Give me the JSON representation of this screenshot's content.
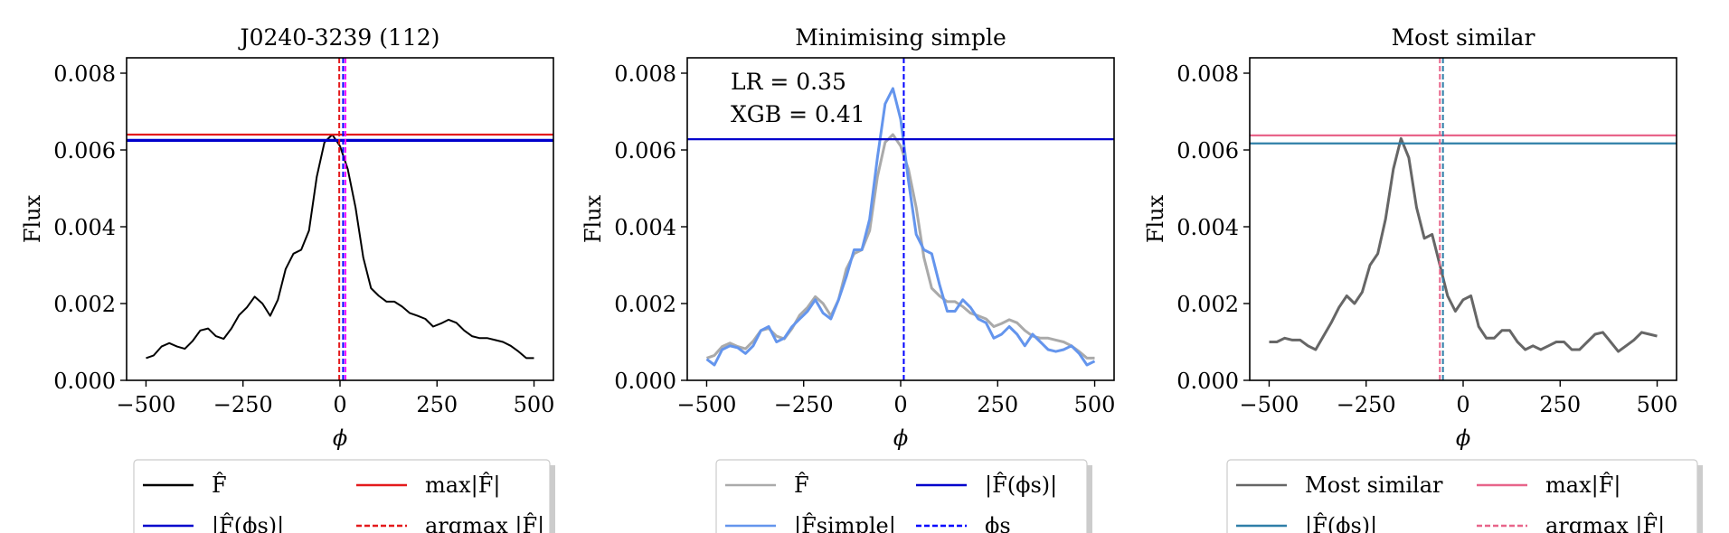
{
  "chart_data": [
    {
      "type": "line",
      "title": "J0240-3239 (112)",
      "xlabel": "ϕ",
      "ylabel": "Flux",
      "xlim": [
        -550,
        550
      ],
      "ylim": [
        0,
        0.0084
      ],
      "xticks": [
        -500,
        -250,
        0,
        250,
        500
      ],
      "xtick_labels": [
        "−500",
        "−250",
        "0",
        "250",
        "500"
      ],
      "yticks": [
        0,
        0.002,
        0.004,
        0.006,
        0.008
      ],
      "ytick_labels": [
        "0.000",
        "0.002",
        "0.004",
        "0.006",
        "0.008"
      ],
      "series": [
        {
          "name": "F̂",
          "style": "solid",
          "color": "#000000",
          "x": [
            -500,
            -480,
            -460,
            -440,
            -420,
            -400,
            -380,
            -360,
            -340,
            -320,
            -300,
            -280,
            -260,
            -240,
            -220,
            -200,
            -180,
            -160,
            -140,
            -120,
            -100,
            -80,
            -60,
            -40,
            -20,
            0,
            20,
            40,
            60,
            80,
            100,
            120,
            140,
            160,
            180,
            200,
            220,
            240,
            260,
            280,
            300,
            320,
            340,
            360,
            380,
            400,
            420,
            440,
            460,
            480,
            500
          ],
          "y": [
            0.00058,
            0.00065,
            0.00088,
            0.00097,
            0.00088,
            0.00082,
            0.00102,
            0.0013,
            0.00135,
            0.00115,
            0.00108,
            0.00135,
            0.0017,
            0.0019,
            0.00218,
            0.002,
            0.00168,
            0.0021,
            0.0029,
            0.0033,
            0.0034,
            0.0039,
            0.0053,
            0.0062,
            0.0064,
            0.0061,
            0.0055,
            0.0045,
            0.0032,
            0.0024,
            0.0022,
            0.00205,
            0.00205,
            0.00192,
            0.00175,
            0.00168,
            0.0016,
            0.0014,
            0.00148,
            0.00158,
            0.0015,
            0.0013,
            0.00115,
            0.0011,
            0.0011,
            0.00105,
            0.001,
            0.0009,
            0.00075,
            0.00058,
            0.00058
          ]
        }
      ],
      "hlines": [
        {
          "name": "max|F̂|",
          "y": 0.0064,
          "color": "#e41a1c",
          "style": "solid"
        },
        {
          "name": "|F̂(ϕs)|",
          "y": 0.00625,
          "color": "#0000cc",
          "style": "solid"
        }
      ],
      "vlines": [
        {
          "name": "argmax |F̂|",
          "x": -2,
          "color": "#e41a1c",
          "style": "dashed"
        },
        {
          "name": "ϕs",
          "x": 8,
          "color": "#0000ff",
          "style": "dashed"
        },
        {
          "name": "magenta marker",
          "x": 14,
          "color": "#ff00ff",
          "style": "dashed"
        }
      ],
      "legend": {
        "position": "bottom",
        "entries": [
          {
            "label": "F̂",
            "color": "#000000",
            "style": "solid",
            "col": 0,
            "row": 0
          },
          {
            "label": "max|F̂|",
            "color": "#e41a1c",
            "style": "solid",
            "col": 1,
            "row": 0
          },
          {
            "label": "|F̂(ϕs)|",
            "color": "#0000cc",
            "style": "solid",
            "col": 0,
            "row": 1
          },
          {
            "label": "argmax |F̂|",
            "color": "#e41a1c",
            "style": "dashed",
            "col": 1,
            "row": 1
          }
        ]
      }
    },
    {
      "type": "line",
      "title": "Minimising simple",
      "xlabel": "ϕ",
      "ylabel": "Flux",
      "xlim": [
        -550,
        550
      ],
      "ylim": [
        0,
        0.0084
      ],
      "xticks": [
        -500,
        -250,
        0,
        250,
        500
      ],
      "xtick_labels": [
        "−500",
        "−250",
        "0",
        "250",
        "500"
      ],
      "yticks": [
        0,
        0.002,
        0.004,
        0.006,
        0.008
      ],
      "ytick_labels": [
        "0.000",
        "0.002",
        "0.004",
        "0.006",
        "0.008"
      ],
      "annotations": [
        "LR = 0.35",
        "XGB = 0.41"
      ],
      "series": [
        {
          "name": "F̂",
          "style": "solid",
          "color": "#aaaaaa",
          "x": [
            -500,
            -480,
            -460,
            -440,
            -420,
            -400,
            -380,
            -360,
            -340,
            -320,
            -300,
            -280,
            -260,
            -240,
            -220,
            -200,
            -180,
            -160,
            -140,
            -120,
            -100,
            -80,
            -60,
            -40,
            -20,
            0,
            20,
            40,
            60,
            80,
            100,
            120,
            140,
            160,
            180,
            200,
            220,
            240,
            260,
            280,
            300,
            320,
            340,
            360,
            380,
            400,
            420,
            440,
            460,
            480,
            500
          ],
          "y": [
            0.00058,
            0.00065,
            0.00088,
            0.00097,
            0.00088,
            0.00082,
            0.00102,
            0.0013,
            0.00135,
            0.00115,
            0.00108,
            0.00135,
            0.0017,
            0.0019,
            0.00218,
            0.002,
            0.00168,
            0.0021,
            0.0029,
            0.0033,
            0.0034,
            0.0039,
            0.0053,
            0.0062,
            0.0064,
            0.0061,
            0.0055,
            0.0045,
            0.0032,
            0.0024,
            0.0022,
            0.00205,
            0.00205,
            0.00192,
            0.00175,
            0.00168,
            0.0016,
            0.0014,
            0.00148,
            0.00158,
            0.0015,
            0.0013,
            0.00115,
            0.0011,
            0.0011,
            0.00105,
            0.001,
            0.0009,
            0.00075,
            0.00058,
            0.00058
          ]
        },
        {
          "name": "|F̂simple|",
          "style": "solid",
          "color": "#6495ed",
          "x": [
            -500,
            -480,
            -460,
            -440,
            -420,
            -400,
            -380,
            -360,
            -340,
            -320,
            -300,
            -280,
            -260,
            -240,
            -220,
            -200,
            -180,
            -160,
            -140,
            -120,
            -100,
            -80,
            -60,
            -40,
            -20,
            0,
            20,
            40,
            60,
            80,
            100,
            120,
            140,
            160,
            180,
            200,
            220,
            240,
            260,
            280,
            300,
            320,
            340,
            360,
            380,
            400,
            420,
            440,
            460,
            480,
            500
          ],
          "y": [
            0.00055,
            0.0004,
            0.0008,
            0.0009,
            0.00085,
            0.0007,
            0.0009,
            0.0013,
            0.0014,
            0.001,
            0.0011,
            0.0014,
            0.0016,
            0.0018,
            0.0021,
            0.00175,
            0.0016,
            0.0021,
            0.0027,
            0.0034,
            0.0034,
            0.0042,
            0.0058,
            0.0072,
            0.0076,
            0.0068,
            0.0052,
            0.0038,
            0.0034,
            0.0033,
            0.0025,
            0.0018,
            0.0018,
            0.0021,
            0.0019,
            0.0016,
            0.0015,
            0.0011,
            0.0012,
            0.0014,
            0.0012,
            0.0009,
            0.0012,
            0.001,
            0.0008,
            0.00075,
            0.0008,
            0.0009,
            0.0007,
            0.0004,
            0.0005
          ]
        }
      ],
      "hlines": [
        {
          "name": "|F̂(ϕs)|",
          "y": 0.00628,
          "color": "#0000cc",
          "style": "solid"
        }
      ],
      "vlines": [
        {
          "name": "ϕs",
          "x": 8,
          "color": "#0000ff",
          "style": "dashed"
        }
      ],
      "legend": {
        "position": "bottom",
        "entries": [
          {
            "label": "F̂",
            "color": "#aaaaaa",
            "style": "solid",
            "col": 0,
            "row": 0
          },
          {
            "label": "|F̂(ϕs)|",
            "color": "#0000cc",
            "style": "solid",
            "col": 1,
            "row": 0
          },
          {
            "label": "|F̂simple|",
            "color": "#6495ed",
            "style": "solid",
            "col": 0,
            "row": 1
          },
          {
            "label": "ϕs",
            "color": "#0000ff",
            "style": "dashed",
            "col": 1,
            "row": 1
          }
        ]
      }
    },
    {
      "type": "line",
      "title": "Most similar",
      "xlabel": "ϕ",
      "ylabel": "Flux",
      "xlim": [
        -550,
        550
      ],
      "ylim": [
        0,
        0.0084
      ],
      "xticks": [
        -500,
        -250,
        0,
        250,
        500
      ],
      "xtick_labels": [
        "−500",
        "−250",
        "0",
        "250",
        "500"
      ],
      "yticks": [
        0,
        0.002,
        0.004,
        0.006,
        0.008
      ],
      "ytick_labels": [
        "0.000",
        "0.002",
        "0.004",
        "0.006",
        "0.008"
      ],
      "series": [
        {
          "name": "Most similar",
          "style": "solid",
          "color": "#666666",
          "x": [
            -500,
            -480,
            -460,
            -440,
            -420,
            -400,
            -380,
            -360,
            -340,
            -320,
            -300,
            -280,
            -260,
            -240,
            -220,
            -200,
            -180,
            -160,
            -140,
            -120,
            -100,
            -80,
            -60,
            -40,
            -20,
            0,
            20,
            40,
            60,
            80,
            100,
            120,
            140,
            160,
            180,
            200,
            220,
            240,
            260,
            280,
            300,
            320,
            340,
            360,
            380,
            400,
            420,
            440,
            460,
            480,
            500
          ],
          "y": [
            0.001,
            0.001,
            0.0011,
            0.00105,
            0.00105,
            0.0009,
            0.0008,
            0.00115,
            0.0015,
            0.0019,
            0.0022,
            0.002,
            0.0023,
            0.003,
            0.0033,
            0.0042,
            0.0055,
            0.0063,
            0.0058,
            0.0045,
            0.0037,
            0.0038,
            0.003,
            0.0022,
            0.0018,
            0.0021,
            0.0022,
            0.0014,
            0.0011,
            0.0011,
            0.0013,
            0.0013,
            0.001,
            0.0008,
            0.0009,
            0.0008,
            0.0009,
            0.001,
            0.001,
            0.0008,
            0.0008,
            0.001,
            0.0012,
            0.00125,
            0.001,
            0.00075,
            0.0009,
            0.00105,
            0.00125,
            0.0012,
            0.00115
          ]
        }
      ],
      "hlines": [
        {
          "name": "max|F̂|",
          "y": 0.00638,
          "color": "#e8658a",
          "style": "solid"
        },
        {
          "name": "|F̂(ϕs)|",
          "y": 0.00617,
          "color": "#2f7fa8",
          "style": "solid"
        }
      ],
      "vlines": [
        {
          "name": "argmax |F̂|",
          "x": -60,
          "color": "#e8658a",
          "style": "dashed"
        },
        {
          "name": "ϕs",
          "x": -52,
          "color": "#2f7fa8",
          "style": "dashed"
        }
      ],
      "legend": {
        "position": "bottom",
        "entries": [
          {
            "label": "Most similar",
            "color": "#666666",
            "style": "solid",
            "col": 0,
            "row": 0
          },
          {
            "label": "max|F̂|",
            "color": "#e8658a",
            "style": "solid",
            "col": 1,
            "row": 0
          },
          {
            "label": "|F̂(ϕs)|",
            "color": "#2f7fa8",
            "style": "solid",
            "col": 0,
            "row": 1
          },
          {
            "label": "argmax |F̂|",
            "color": "#e8658a",
            "style": "dashed",
            "col": 1,
            "row": 1
          }
        ]
      }
    }
  ]
}
